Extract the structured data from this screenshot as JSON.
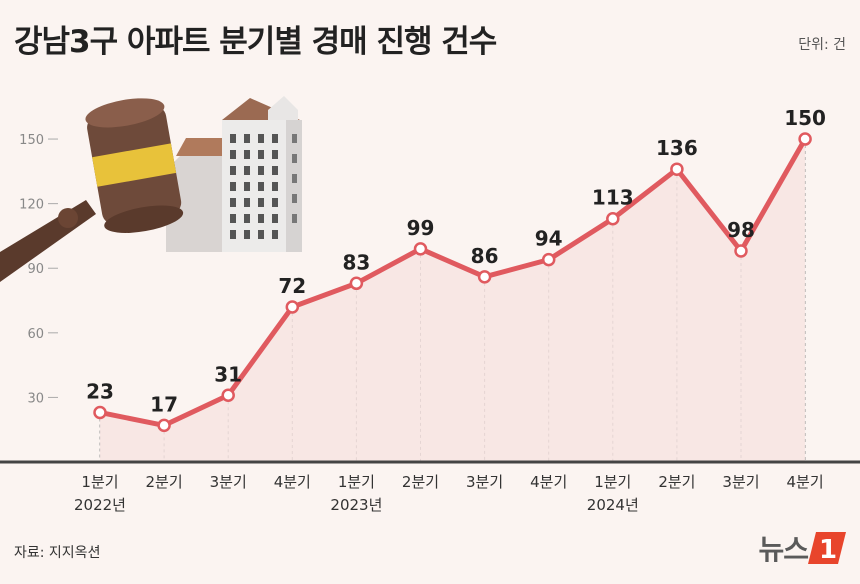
{
  "title": "강남3구 아파트 분기별 경매 진행 건수",
  "unit": "단위: 건",
  "source": "자료: 지지옥션",
  "logo": {
    "text": "뉴스",
    "mark": "1"
  },
  "colors": {
    "line": "#e05a5f",
    "fill": "#f7e3e1",
    "background": "#fbf4f1"
  },
  "chart_data": {
    "type": "line",
    "categories": [
      "1분기",
      "2분기",
      "3분기",
      "4분기",
      "1분기",
      "2분기",
      "3분기",
      "4분기",
      "1분기",
      "2분기",
      "3분기",
      "4분기"
    ],
    "year_labels": [
      {
        "index": 0,
        "label": "2022년"
      },
      {
        "index": 4,
        "label": "2023년"
      },
      {
        "index": 8,
        "label": "2024년"
      }
    ],
    "values": [
      23,
      17,
      31,
      72,
      83,
      99,
      86,
      94,
      113,
      136,
      98,
      150
    ],
    "y_ticks": [
      30,
      60,
      90,
      120,
      150
    ],
    "ylim": [
      0,
      150
    ],
    "grid": false,
    "legend": "none"
  }
}
